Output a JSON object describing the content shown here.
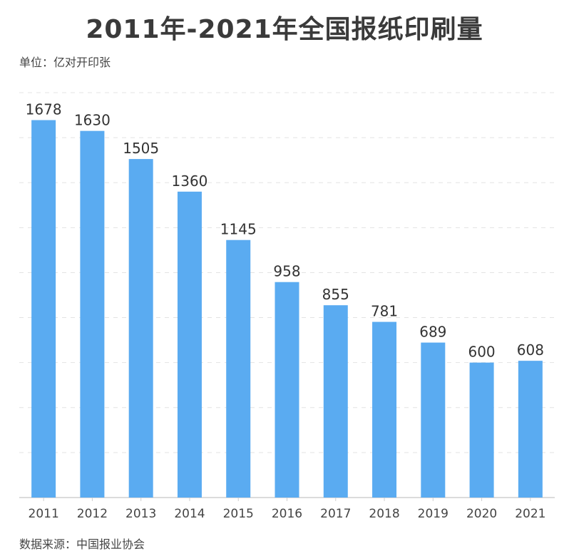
{
  "chart_data": {
    "type": "bar",
    "title": "2011年-2021年全国报纸印刷量",
    "unit_label": "单位：亿对开印张",
    "source": "数据来源：中国报业协会",
    "categories": [
      "2011",
      "2012",
      "2013",
      "2014",
      "2015",
      "2016",
      "2017",
      "2018",
      "2019",
      "2020",
      "2021"
    ],
    "values": [
      1678,
      1630,
      1505,
      1360,
      1145,
      958,
      855,
      781,
      689,
      600,
      608
    ],
    "ylim": [
      0,
      1800
    ],
    "grid": true,
    "grid_step": 200,
    "bar_color": "#5aabf1",
    "data_labels": true
  }
}
